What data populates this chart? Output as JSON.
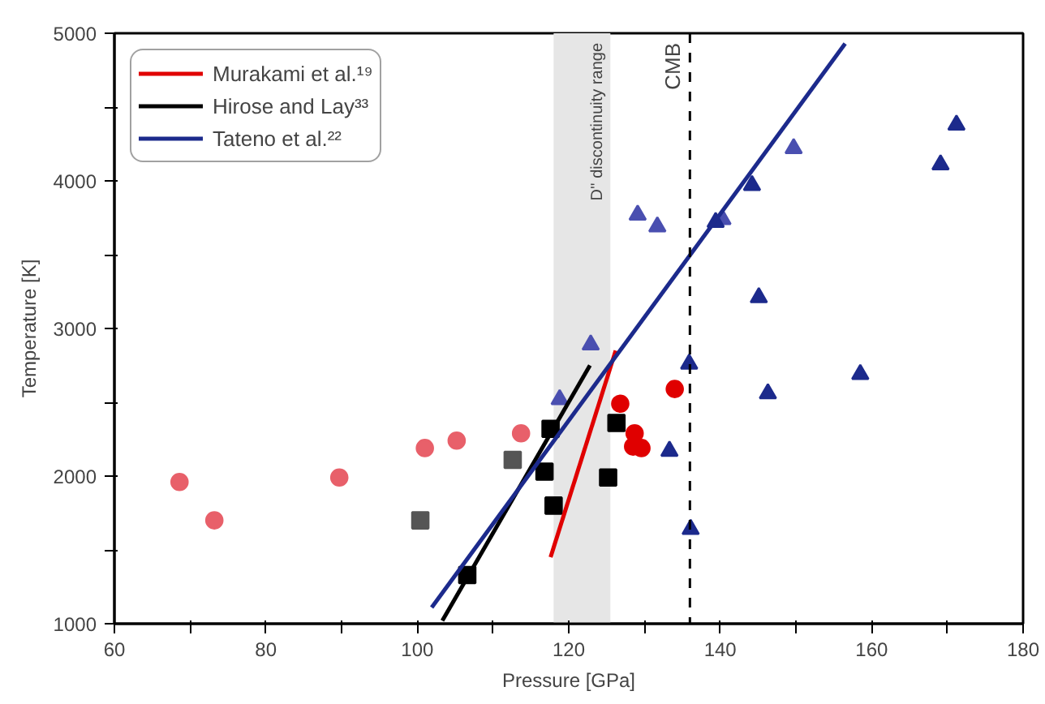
{
  "chart_data": {
    "type": "scatter",
    "xlabel": "Pressure [GPa]",
    "ylabel": "Temperature [K]",
    "xlim": [
      60,
      180
    ],
    "ylim": [
      1000,
      5000
    ],
    "xticks": [
      60,
      {
        "value": 70,
        "label": null
      },
      80,
      {
        "value": 90,
        "label": null
      },
      100,
      {
        "value": 110,
        "label": null
      },
      120,
      {
        "value": 130,
        "label": null
      },
      140,
      {
        "value": 150,
        "label": null
      },
      160,
      {
        "value": 170,
        "label": null
      },
      180
    ],
    "yticks": [
      1000,
      {
        "value": 1500,
        "label": null
      },
      2000,
      {
        "value": 2500,
        "label": null
      },
      3000,
      {
        "value": 3500,
        "label": null
      },
      4000,
      {
        "value": 4500,
        "label": null
      },
      5000
    ],
    "grid": false,
    "legend": "top left",
    "bands": [
      {
        "axis": "x",
        "from": 118,
        "to": 125.5,
        "label": "D'' discontinuity range",
        "color": "#e6e6e6"
      }
    ],
    "ref_lines": [
      {
        "axis": "x",
        "value": 136,
        "label": "CMB",
        "color": "#000000",
        "line_style": "dashed"
      }
    ],
    "series": [
      {
        "marker": "circle",
        "color": "#e8606a",
        "x": [
          68.6,
          73.2,
          89.7,
          101,
          105.2,
          113.7
        ],
        "values": [
          1960,
          1700,
          1990,
          2190,
          2240,
          2290
        ]
      },
      {
        "marker": "square",
        "color": "#555555",
        "x": [
          100.4,
          112.6
        ],
        "values": [
          1700,
          2110
        ]
      },
      {
        "marker": "square",
        "color": "#000000",
        "x": [
          106.6,
          117.6,
          116.8,
          118,
          126.3,
          125.2
        ],
        "values": [
          1330,
          2320,
          2030,
          1800,
          2360,
          1990
        ]
      },
      {
        "marker": "circle",
        "color": "#e00000",
        "x": [
          126.8,
          128.7,
          128.5,
          129.6,
          134
        ],
        "values": [
          2490,
          2290,
          2200,
          2190,
          2590
        ]
      },
      {
        "marker": "triangle",
        "color": "#4a4fb0",
        "x": [
          118.8,
          122.9,
          129.1,
          131.7,
          140.3,
          149.7
        ],
        "values": [
          2520,
          2890,
          3770,
          3690,
          3740,
          4220
        ]
      },
      {
        "marker": "triangle",
        "color": "#1c2a8c",
        "x": [
          171.2,
          169.1,
          144.2,
          139.4,
          145.1,
          135.9,
          158.5,
          146.3,
          133.3,
          136.1
        ],
        "values": [
          4380,
          4110,
          3970,
          3720,
          3210,
          2760,
          2690,
          2560,
          2170,
          1640
        ]
      },
      {
        "type": "line",
        "name": "Murakami et al.¹⁹",
        "color": "#e00000",
        "x": [
          117.6,
          126.2
        ],
        "values": [
          1450,
          2850
        ]
      },
      {
        "type": "line",
        "name": "Hirose and Lay³³",
        "color": "#000000",
        "x": [
          103.3,
          122.8
        ],
        "values": [
          1020,
          2750
        ]
      },
      {
        "type": "line",
        "name": "Tateno et al.²²",
        "color": "#1c2a8c",
        "x": [
          101.9,
          156.5
        ],
        "values": [
          1110,
          4930
        ]
      }
    ]
  }
}
